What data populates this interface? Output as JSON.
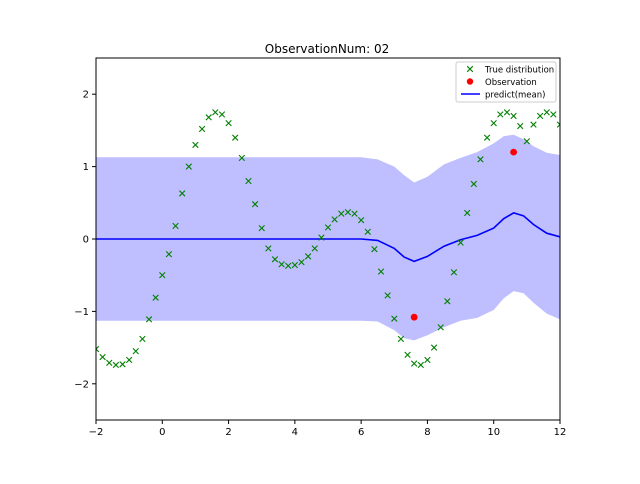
{
  "chart_data": {
    "type": "line",
    "title": "ObservationNum: 02",
    "xlabel": "",
    "ylabel": "",
    "xlim": [
      -2,
      12
    ],
    "ylim": [
      -2.5,
      2.5
    ],
    "xticks": [
      -2,
      0,
      2,
      4,
      6,
      8,
      10,
      12
    ],
    "yticks": [
      -2,
      -1,
      0,
      1,
      2
    ],
    "grid": false,
    "legend_position": "top-right",
    "legend": [
      {
        "label": "True distribution",
        "marker": "x",
        "color": "#008000"
      },
      {
        "label": "Observation",
        "marker": "dot",
        "color": "#ff0000"
      },
      {
        "label": "predict(mean)",
        "marker": "line",
        "color": "#0000ff"
      }
    ],
    "colors": {
      "true_distribution": "#008000",
      "observation": "#ff0000",
      "predict_mean": "#0000ff",
      "confidence_band": "#0000ff"
    },
    "true_distribution": {
      "name": "True distribution",
      "x": [
        -2.0,
        -1.8,
        -1.6,
        -1.4,
        -1.2,
        -1.0,
        -0.8,
        -0.6,
        -0.4,
        -0.2,
        0.0,
        0.2,
        0.4,
        0.6,
        0.8,
        1.0,
        1.2,
        1.4,
        1.6,
        1.8,
        2.0,
        2.2,
        2.4,
        2.6,
        2.8,
        3.0,
        3.2,
        3.4,
        3.6,
        3.8,
        4.0,
        4.2,
        4.4,
        4.6,
        4.8,
        5.0,
        5.2,
        5.4,
        5.6,
        5.8,
        6.0,
        6.2,
        6.4,
        6.6,
        6.8,
        7.0,
        7.2,
        7.4,
        7.6,
        7.8,
        8.0,
        8.2,
        8.4,
        8.6,
        8.8,
        9.0,
        9.2,
        9.4,
        9.6,
        9.8,
        10.0,
        10.2,
        10.4,
        10.6,
        10.8,
        11.0,
        11.2,
        11.4,
        11.6,
        11.8,
        12.0
      ],
      "y": [
        -1.52,
        -1.63,
        -1.71,
        -1.74,
        -1.73,
        -1.67,
        -1.55,
        -1.38,
        -1.11,
        -0.81,
        -0.5,
        -0.21,
        0.18,
        0.63,
        1.0,
        1.3,
        1.52,
        1.68,
        1.75,
        1.72,
        1.6,
        1.4,
        1.12,
        0.8,
        0.48,
        0.15,
        -0.13,
        -0.28,
        -0.35,
        -0.37,
        -0.36,
        -0.32,
        -0.24,
        -0.13,
        0.02,
        0.16,
        0.27,
        0.35,
        0.37,
        0.35,
        0.26,
        0.1,
        -0.14,
        -0.45,
        -0.78,
        -1.1,
        -1.38,
        -1.6,
        -1.72,
        -1.74,
        -1.67,
        -1.5,
        -1.22,
        -0.86,
        -0.46,
        -0.05,
        0.36,
        0.76,
        1.1,
        1.4,
        1.6,
        1.72,
        1.75,
        1.7,
        1.56,
        1.35,
        1.58,
        1.7,
        1.75,
        1.72,
        1.58
      ]
    },
    "observations": {
      "name": "Observation",
      "x": [
        7.6,
        10.6
      ],
      "y": [
        -1.08,
        1.2
      ]
    },
    "predict_mean": {
      "name": "predict(mean)",
      "x": [
        -2.0,
        6.0,
        6.5,
        7.0,
        7.3,
        7.6,
        8.0,
        8.5,
        9.0,
        9.5,
        10.0,
        10.3,
        10.6,
        10.9,
        11.2,
        11.6,
        12.0
      ],
      "y": [
        0.0,
        0.0,
        -0.02,
        -0.13,
        -0.25,
        -0.31,
        -0.24,
        -0.1,
        -0.01,
        0.05,
        0.15,
        0.28,
        0.36,
        0.32,
        0.2,
        0.08,
        0.03
      ]
    },
    "confidence_band": {
      "x": [
        -2.0,
        6.0,
        6.5,
        7.0,
        7.3,
        7.6,
        8.0,
        8.5,
        9.0,
        9.5,
        10.0,
        10.3,
        10.6,
        10.9,
        11.2,
        11.6,
        12.0
      ],
      "upper": [
        1.13,
        1.13,
        1.1,
        1.0,
        0.88,
        0.78,
        0.86,
        1.03,
        1.12,
        1.2,
        1.32,
        1.42,
        1.44,
        1.38,
        1.28,
        1.19,
        1.16
      ],
      "lower": [
        -1.13,
        -1.13,
        -1.14,
        -1.26,
        -1.37,
        -1.4,
        -1.33,
        -1.22,
        -1.13,
        -1.09,
        -0.98,
        -0.82,
        -0.72,
        -0.75,
        -0.88,
        -1.03,
        -1.11
      ]
    }
  }
}
